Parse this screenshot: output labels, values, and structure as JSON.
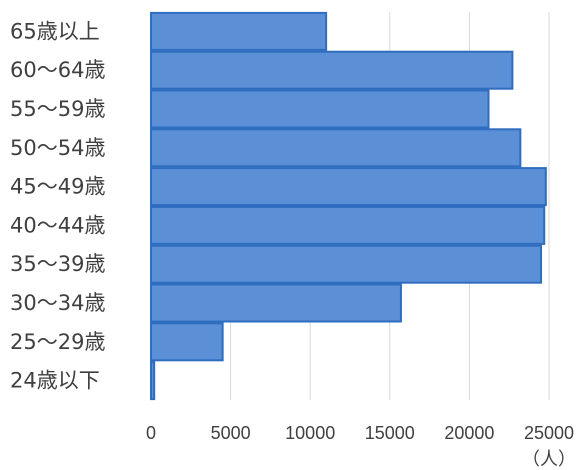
{
  "chart_data": {
    "type": "bar",
    "orientation": "horizontal",
    "categories": [
      "65歳以上",
      "60〜64歳",
      "55〜59歳",
      "50〜54歳",
      "45〜49歳",
      "40〜44歳",
      "35〜39歳",
      "30〜34歳",
      "25〜29歳",
      "24歳以下"
    ],
    "values": [
      11000,
      22700,
      21200,
      23200,
      24800,
      24700,
      24500,
      15700,
      4500,
      200
    ],
    "xlim": [
      0,
      25000
    ],
    "xticks": [
      0,
      5000,
      10000,
      15000,
      20000,
      25000
    ],
    "unit_label": "（人）",
    "grid": true,
    "legend": "none",
    "colors": {
      "bar_fill": "#5b8fd6",
      "bar_stroke": "#2f6dbf",
      "grid": "#d9d9d9",
      "text": "#404040"
    }
  }
}
